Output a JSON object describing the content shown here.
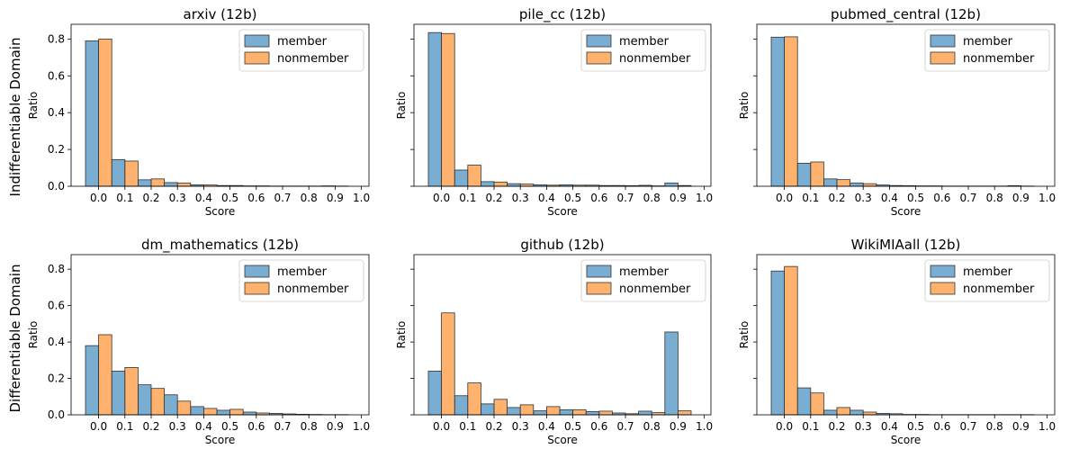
{
  "row_labels": [
    "Indifferentiable Domain",
    "Differentiable Domain"
  ],
  "colors": {
    "member": "#1f77b4",
    "nonmember": "#ff7f0e"
  },
  "chart_data": [
    {
      "type": "bar",
      "title": "arxiv (12b)",
      "xlabel": "Score",
      "ylabel": "Ratio",
      "x_ticks": [
        "0.0",
        "0.1",
        "0.2",
        "0.3",
        "0.4",
        "0.5",
        "0.6",
        "0.7",
        "0.8",
        "0.9",
        "1.0"
      ],
      "y_ticks": [
        "0.0",
        "0.2",
        "0.4",
        "0.6",
        "0.8"
      ],
      "ylim": [
        0,
        0.88
      ],
      "legend": "upper-right",
      "series": [
        {
          "name": "member",
          "values": [
            0.79,
            0.145,
            0.035,
            0.02,
            0.008,
            0.004,
            0.002,
            0.001,
            0.001,
            0.002
          ]
        },
        {
          "name": "nonmember",
          "values": [
            0.8,
            0.137,
            0.04,
            0.018,
            0.007,
            0.004,
            0.002,
            0.001,
            0.001,
            0.001
          ]
        }
      ]
    },
    {
      "type": "bar",
      "title": "pile_cc (12b)",
      "xlabel": "Score",
      "ylabel": "Ratio",
      "x_ticks": [
        "0.0",
        "0.1",
        "0.2",
        "0.3",
        "0.4",
        "0.5",
        "0.6",
        "0.7",
        "0.8",
        "0.9",
        "1.0"
      ],
      "y_ticks": [],
      "ylim": [
        0,
        0.88
      ],
      "legend": "upper-right",
      "series": [
        {
          "name": "member",
          "values": [
            0.835,
            0.088,
            0.025,
            0.014,
            0.008,
            0.008,
            0.006,
            0.004,
            0.005,
            0.018
          ]
        },
        {
          "name": "nonmember",
          "values": [
            0.83,
            0.115,
            0.023,
            0.012,
            0.006,
            0.006,
            0.004,
            0.003,
            0.002,
            0.004
          ]
        }
      ]
    },
    {
      "type": "bar",
      "title": "pubmed_central (12b)",
      "xlabel": "Score",
      "ylabel": "Ratio",
      "x_ticks": [
        "0.0",
        "0.1",
        "0.2",
        "0.3",
        "0.4",
        "0.5",
        "0.6",
        "0.7",
        "0.8",
        "0.9",
        "1.0"
      ],
      "y_ticks": [],
      "ylim": [
        0,
        0.88
      ],
      "legend": "upper-right",
      "series": [
        {
          "name": "member",
          "values": [
            0.81,
            0.125,
            0.04,
            0.018,
            0.007,
            0.003,
            0.002,
            0.001,
            0.001,
            0.003
          ]
        },
        {
          "name": "nonmember",
          "values": [
            0.812,
            0.132,
            0.036,
            0.014,
            0.004,
            0.002,
            0.001,
            0.001,
            0.001,
            0.001
          ]
        }
      ]
    },
    {
      "type": "bar",
      "title": "dm_mathematics (12b)",
      "xlabel": "Score",
      "ylabel": "Ratio",
      "x_ticks": [
        "0.0",
        "0.1",
        "0.2",
        "0.3",
        "0.4",
        "0.5",
        "0.6",
        "0.7",
        "0.8",
        "0.9",
        "1.0"
      ],
      "y_ticks": [
        "0.0",
        "0.2",
        "0.4",
        "0.6",
        "0.8"
      ],
      "ylim": [
        0,
        0.88
      ],
      "legend": "upper-right",
      "series": [
        {
          "name": "member",
          "values": [
            0.38,
            0.24,
            0.165,
            0.11,
            0.045,
            0.025,
            0.015,
            0.008,
            0.003,
            0.001
          ]
        },
        {
          "name": "nonmember",
          "values": [
            0.44,
            0.26,
            0.145,
            0.075,
            0.035,
            0.03,
            0.01,
            0.005,
            0.002,
            0.001
          ]
        }
      ]
    },
    {
      "type": "bar",
      "title": "github (12b)",
      "xlabel": "Score",
      "ylabel": "Ratio",
      "x_ticks": [
        "0.0",
        "0.1",
        "0.2",
        "0.3",
        "0.4",
        "0.5",
        "0.6",
        "0.7",
        "0.8",
        "0.9",
        "1.0"
      ],
      "y_ticks": [],
      "ylim": [
        0,
        0.88
      ],
      "legend": "upper-right",
      "series": [
        {
          "name": "member",
          "values": [
            0.24,
            0.105,
            0.06,
            0.04,
            0.022,
            0.028,
            0.018,
            0.01,
            0.02,
            0.455
          ]
        },
        {
          "name": "nonmember",
          "values": [
            0.56,
            0.175,
            0.085,
            0.055,
            0.045,
            0.028,
            0.02,
            0.006,
            0.012,
            0.022
          ]
        }
      ]
    },
    {
      "type": "bar",
      "title": "WikiMIAall (12b)",
      "xlabel": "Score",
      "ylabel": "Ratio",
      "x_ticks": [
        "0.0",
        "0.1",
        "0.2",
        "0.3",
        "0.4",
        "0.5",
        "0.6",
        "0.7",
        "0.8",
        "0.9",
        "1.0"
      ],
      "y_ticks": [],
      "ylim": [
        0,
        0.88
      ],
      "legend": "upper-right",
      "series": [
        {
          "name": "member",
          "values": [
            0.79,
            0.148,
            0.025,
            0.025,
            0.008,
            0.002,
            0.001,
            0.001,
            0.001,
            0.001
          ]
        },
        {
          "name": "nonmember",
          "values": [
            0.815,
            0.12,
            0.04,
            0.015,
            0.006,
            0.002,
            0.001,
            0.001,
            0.001,
            0.001
          ]
        }
      ]
    }
  ]
}
